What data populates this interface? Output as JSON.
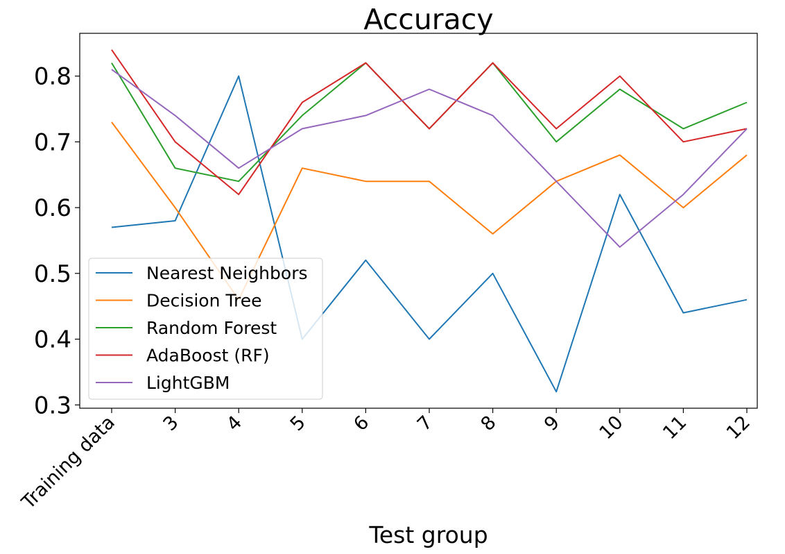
{
  "chart_data": {
    "type": "line",
    "title": "Accuracy",
    "xlabel": "Test group",
    "ylabel": "",
    "categories": [
      "Training data",
      "3",
      "4",
      "5",
      "6",
      "7",
      "8",
      "9",
      "10",
      "11",
      "12"
    ],
    "ylim": [
      0.295,
      0.865
    ],
    "yticks": [
      "0.3",
      "0.4",
      "0.5",
      "0.6",
      "0.7",
      "0.8"
    ],
    "ytick_values": [
      0.3,
      0.4,
      0.5,
      0.6,
      0.7,
      0.8
    ],
    "grid": false,
    "legend_position": "lower-left",
    "series": [
      {
        "name": "Nearest Neighbors",
        "color": "#1f77b4",
        "values": [
          0.57,
          0.58,
          0.8,
          0.4,
          0.52,
          0.4,
          0.5,
          0.32,
          0.62,
          0.44,
          0.46
        ]
      },
      {
        "name": "Decision Tree",
        "color": "#ff7f0e",
        "values": [
          0.73,
          0.6,
          0.46,
          0.66,
          0.64,
          0.64,
          0.56,
          0.64,
          0.68,
          0.6,
          0.68
        ]
      },
      {
        "name": "Random Forest",
        "color": "#2ca02c",
        "values": [
          0.82,
          0.66,
          0.64,
          0.74,
          0.82,
          0.72,
          0.82,
          0.7,
          0.78,
          0.72,
          0.76
        ]
      },
      {
        "name": "AdaBoost (RF)",
        "color": "#d62728",
        "values": [
          0.84,
          0.7,
          0.62,
          0.76,
          0.82,
          0.72,
          0.82,
          0.72,
          0.8,
          0.7,
          0.72
        ]
      },
      {
        "name": "LightGBM",
        "color": "#9467bd",
        "values": [
          0.81,
          0.74,
          0.66,
          0.72,
          0.74,
          0.78,
          0.74,
          0.64,
          0.54,
          0.62,
          0.72
        ]
      }
    ]
  }
}
